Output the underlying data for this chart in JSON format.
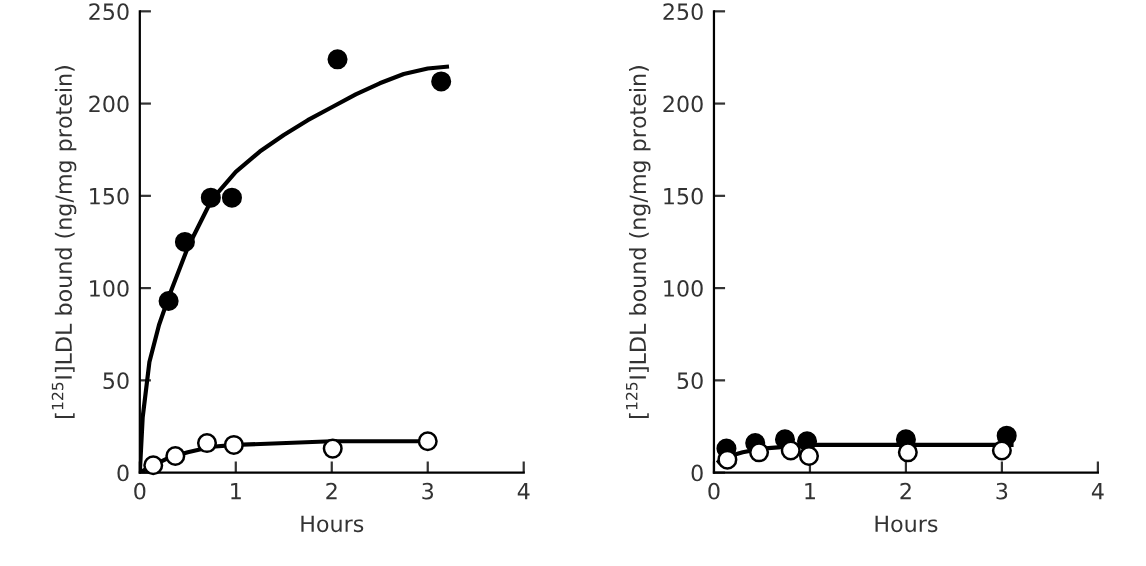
{
  "chart_data": [
    {
      "type": "scatter",
      "xlabel": "Hours",
      "ylabel": "[$^{125}$I]LDL bound (ng/mg protein)",
      "xlim": [
        0,
        4
      ],
      "ylim": [
        0,
        250
      ],
      "xticks": [
        0,
        1,
        2,
        3,
        4
      ],
      "yticks": [
        0,
        50,
        100,
        150,
        200,
        250
      ],
      "grid": false,
      "legend": false,
      "series": [
        {
          "type": "line",
          "marker": "none",
          "color": "#000000",
          "x": [
            0,
            0.03,
            0.1,
            0.2,
            0.3,
            0.5,
            0.75,
            1,
            1.25,
            1.5,
            1.75,
            2,
            2.25,
            2.5,
            2.75,
            3,
            3.2
          ],
          "values": [
            0,
            30,
            60,
            80,
            95,
            122,
            148,
            163,
            174,
            183,
            191,
            198,
            205,
            211,
            216,
            219,
            220
          ]
        },
        {
          "type": "line",
          "marker": "none",
          "color": "#000000",
          "x": [
            0,
            0.1,
            0.3,
            0.5,
            0.75,
            1,
            2,
            3
          ],
          "values": [
            0,
            3,
            8,
            11,
            14,
            15,
            17,
            17
          ]
        },
        {
          "marker": "circle",
          "color": "#000000",
          "x": [
            0.3,
            0.47,
            0.74,
            0.96,
            2.06,
            3.14
          ],
          "values": [
            93,
            125,
            149,
            149,
            224,
            212
          ]
        },
        {
          "marker": "circle",
          "color": "#ffffff",
          "x": [
            0.14,
            0.37,
            0.7,
            0.98,
            2.01,
            3.0
          ],
          "values": [
            4,
            9,
            16,
            15,
            13,
            17
          ]
        }
      ]
    },
    {
      "type": "scatter",
      "xlabel": "Hours",
      "ylabel": "[$^{125}$I]LDL bound (ng/mg protein)",
      "xlim": [
        0,
        4
      ],
      "ylim": [
        0,
        250
      ],
      "xticks": [
        0,
        1,
        2,
        3,
        4
      ],
      "yticks": [
        0,
        50,
        100,
        150,
        200,
        250
      ],
      "grid": false,
      "legend": false,
      "series": [
        {
          "type": "line",
          "marker": "none",
          "color": "#000000",
          "x": [
            0.05,
            0.1,
            0.3,
            0.5,
            1,
            2,
            3.1
          ],
          "values": [
            6,
            8,
            11,
            13,
            15,
            15,
            15
          ]
        },
        {
          "marker": "circle",
          "color": "#000000",
          "x": [
            0.13,
            0.43,
            0.74,
            0.97,
            2.0,
            3.05
          ],
          "values": [
            13,
            16,
            18,
            17,
            18,
            20
          ]
        },
        {
          "marker": "circle",
          "color": "#ffffff",
          "x": [
            0.14,
            0.47,
            0.8,
            0.99,
            2.02,
            3.0
          ],
          "values": [
            7,
            11,
            12,
            9,
            11,
            12
          ]
        }
      ]
    }
  ]
}
